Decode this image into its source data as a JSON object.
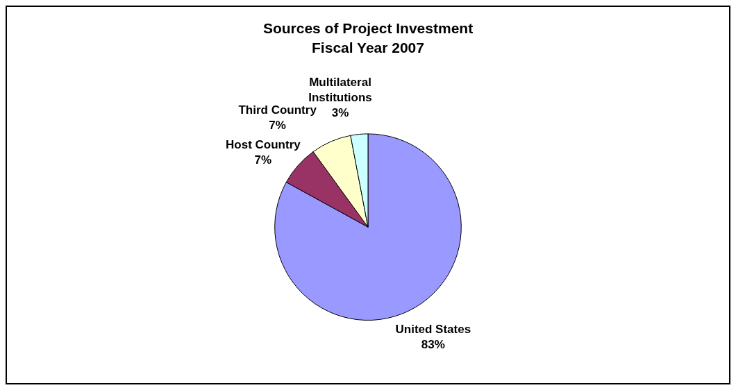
{
  "chart_data": {
    "type": "pie",
    "title": "Sources of Project Investment",
    "subtitle": "Fiscal Year 2007",
    "categories": [
      "United States",
      "Host Country",
      "Third Country",
      "Multilateral Institutions"
    ],
    "values": [
      83,
      7,
      7,
      3
    ],
    "colors": [
      "#9999ff",
      "#993366",
      "#ffffcc",
      "#ccffff"
    ],
    "value_labels": [
      "83%",
      "7%",
      "7%",
      "3%"
    ],
    "legend": false
  }
}
